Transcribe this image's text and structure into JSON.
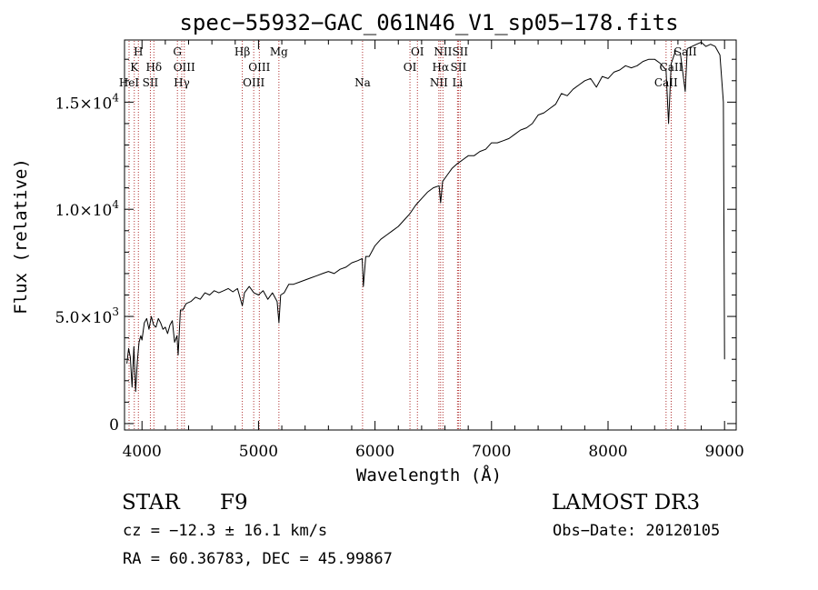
{
  "chart_data": {
    "type": "line",
    "title": "spec−55932−GAC_061N46_V1_sp05−178.fits",
    "xlabel": "Wavelength (Å)",
    "ylabel": "Flux (relative)",
    "xlim": [
      3850,
      9100
    ],
    "ylim": [
      -300,
      17900
    ],
    "xticks": [
      4000,
      5000,
      6000,
      7000,
      8000,
      9000
    ],
    "xtick_labels": [
      "4000",
      "5000",
      "6000",
      "7000",
      "8000",
      "9000"
    ],
    "yticks": [
      {
        "value": 0,
        "mantissa": "0",
        "exp": ""
      },
      {
        "value": 5000,
        "mantissa": "5.0×10",
        "exp": "3"
      },
      {
        "value": 10000,
        "mantissa": "1.0×10",
        "exp": "4"
      },
      {
        "value": 15000,
        "mantissa": "1.5×10",
        "exp": "4"
      }
    ],
    "grid": false,
    "series": [
      {
        "name": "flux",
        "x": [
          3870,
          3885,
          3900,
          3915,
          3930,
          3945,
          3960,
          3975,
          3990,
          4000,
          4020,
          4040,
          4060,
          4080,
          4100,
          4120,
          4140,
          4160,
          4180,
          4200,
          4220,
          4240,
          4260,
          4280,
          4300,
          4310,
          4330,
          4350,
          4380,
          4420,
          4460,
          4500,
          4540,
          4580,
          4620,
          4660,
          4700,
          4740,
          4780,
          4820,
          4861,
          4880,
          4920,
          4960,
          5000,
          5040,
          5080,
          5120,
          5160,
          5175,
          5190,
          5220,
          5260,
          5300,
          5350,
          5400,
          5450,
          5500,
          5550,
          5600,
          5650,
          5700,
          5750,
          5800,
          5850,
          5890,
          5900,
          5920,
          5950,
          6000,
          6050,
          6100,
          6150,
          6200,
          6250,
          6300,
          6350,
          6400,
          6450,
          6500,
          6550,
          6563,
          6580,
          6620,
          6660,
          6700,
          6750,
          6800,
          6850,
          6900,
          6950,
          7000,
          7050,
          7100,
          7150,
          7200,
          7250,
          7300,
          7350,
          7400,
          7450,
          7500,
          7550,
          7600,
          7650,
          7700,
          7750,
          7800,
          7850,
          7900,
          7950,
          8000,
          8050,
          8100,
          8150,
          8200,
          8250,
          8300,
          8350,
          8400,
          8450,
          8498,
          8520,
          8542,
          8580,
          8620,
          8662,
          8680,
          8720,
          8760,
          8800,
          8840,
          8880,
          8920,
          8960,
          8990,
          9000
        ],
        "y": [
          2800,
          3500,
          3100,
          1700,
          3600,
          1500,
          2900,
          3800,
          4100,
          3900,
          4700,
          4900,
          4400,
          5000,
          4600,
          4500,
          4900,
          4700,
          4400,
          4500,
          4200,
          4600,
          4800,
          3800,
          4100,
          3200,
          5300,
          5300,
          5600,
          5700,
          5900,
          5800,
          6100,
          6000,
          6200,
          6100,
          6200,
          6300,
          6150,
          6300,
          5500,
          6100,
          6400,
          6100,
          6000,
          6200,
          5800,
          6100,
          5700,
          4700,
          6000,
          6100,
          6500,
          6500,
          6600,
          6700,
          6800,
          6900,
          7000,
          7100,
          7000,
          7200,
          7300,
          7500,
          7600,
          7700,
          6400,
          7800,
          7800,
          8300,
          8600,
          8800,
          9000,
          9200,
          9500,
          9800,
          10200,
          10500,
          10800,
          11000,
          11100,
          10300,
          11300,
          11600,
          11900,
          12100,
          12300,
          12500,
          12500,
          12700,
          12800,
          13100,
          13100,
          13200,
          13300,
          13500,
          13700,
          13800,
          14000,
          14400,
          14500,
          14700,
          14900,
          15400,
          15300,
          15600,
          15800,
          16000,
          16100,
          15700,
          16200,
          16100,
          16400,
          16500,
          16700,
          16600,
          16700,
          16900,
          17000,
          17000,
          16800,
          16500,
          14000,
          16800,
          17400,
          17300,
          15500,
          17500,
          17600,
          17700,
          17800,
          17600,
          17700,
          17600,
          17200,
          15000,
          3000
        ]
      }
    ],
    "lines": [
      {
        "wl": 3889,
        "label": "HeI",
        "row": 3
      },
      {
        "wl": 3934,
        "label": "K",
        "row": 2
      },
      {
        "wl": 3969,
        "label": "H",
        "row": 1
      },
      {
        "wl": 4072,
        "label": "SII",
        "row": 3
      },
      {
        "wl": 4102,
        "label": "Hδ",
        "row": 2
      },
      {
        "wl": 4304,
        "label": "G",
        "row": 1
      },
      {
        "wl": 4341,
        "label": "Hγ",
        "row": 3
      },
      {
        "wl": 4363,
        "label": "OIII",
        "row": 2
      },
      {
        "wl": 4861,
        "label": "Hβ",
        "row": 1
      },
      {
        "wl": 4959,
        "label": "OIII",
        "row": 3
      },
      {
        "wl": 5007,
        "label": "OIII",
        "row": 2
      },
      {
        "wl": 5175,
        "label": "Mg",
        "row": 1
      },
      {
        "wl": 5893,
        "label": "Na",
        "row": 3
      },
      {
        "wl": 6300,
        "label": "OI",
        "row": 2
      },
      {
        "wl": 6364,
        "label": "OI",
        "row": 1
      },
      {
        "wl": 6548,
        "label": "NII",
        "row": 3
      },
      {
        "wl": 6563,
        "label": "Hα",
        "row": 2
      },
      {
        "wl": 6583,
        "label": "NII",
        "row": 1
      },
      {
        "wl": 6708,
        "label": "Li",
        "row": 3
      },
      {
        "wl": 6716,
        "label": "SII",
        "row": 2
      },
      {
        "wl": 6731,
        "label": "SII",
        "row": 1
      },
      {
        "wl": 8498,
        "label": "CaII",
        "row": 3
      },
      {
        "wl": 8542,
        "label": "CaII",
        "row": 2
      },
      {
        "wl": 8662,
        "label": "CaII",
        "row": 1
      }
    ]
  },
  "info": {
    "class_label": "STAR",
    "subclass": "F9",
    "survey": "LAMOST DR3",
    "cz": "cz = −12.3 ± 16.1 km/s",
    "obs_date": "Obs−Date: 20120105",
    "coords": "RA =  60.36783, DEC =  45.99867"
  },
  "colors": {
    "line_marker": "#b03030",
    "spectrum": "#000000",
    "axes": "#000000"
  }
}
